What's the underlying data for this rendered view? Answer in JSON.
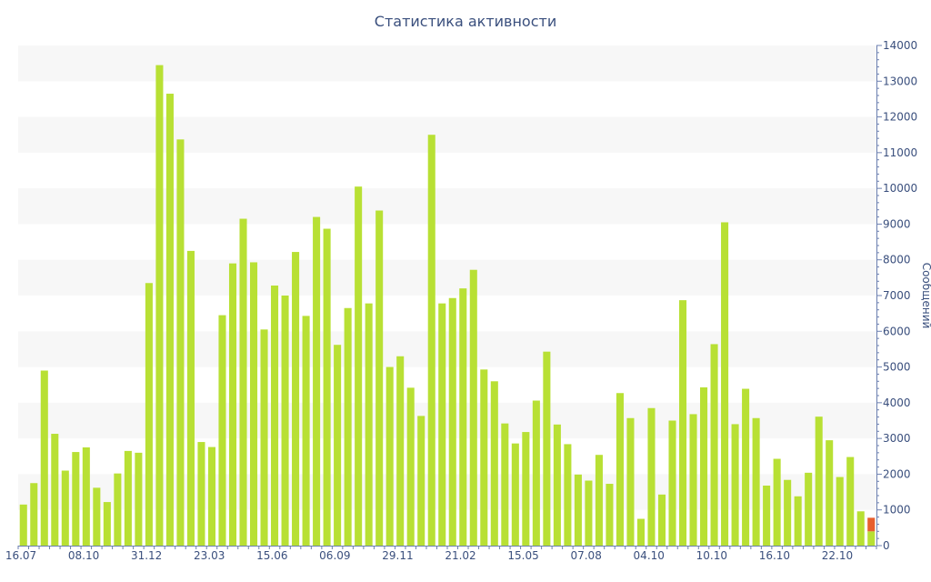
{
  "chart_data": {
    "type": "bar",
    "title": "Статистика активности",
    "xlabel": "",
    "ylabel": "Сообщений",
    "ylim": [
      0,
      14000
    ],
    "yticks": [
      0,
      1000,
      2000,
      3000,
      4000,
      5000,
      6000,
      7000,
      8000,
      9000,
      10000,
      11000,
      12000,
      13000,
      14000
    ],
    "y_axis_position": "right",
    "grid": "alternating horizontal bands",
    "x_tick_labels": [
      {
        "index": 0,
        "label": "16.07"
      },
      {
        "index": 6,
        "label": "08.10"
      },
      {
        "index": 12,
        "label": "31.12"
      },
      {
        "index": 18,
        "label": "23.03"
      },
      {
        "index": 24,
        "label": "15.06"
      },
      {
        "index": 30,
        "label": "06.09"
      },
      {
        "index": 36,
        "label": "29.11"
      },
      {
        "index": 42,
        "label": "21.02"
      },
      {
        "index": 48,
        "label": "15.05"
      },
      {
        "index": 54,
        "label": "07.08"
      },
      {
        "index": 60,
        "label": "04.10"
      },
      {
        "index": 66,
        "label": "10.10"
      },
      {
        "index": 72,
        "label": "16.10"
      },
      {
        "index": 78,
        "label": "22.10"
      }
    ],
    "values": [
      1150,
      1750,
      4900,
      3130,
      2100,
      2620,
      2750,
      1620,
      1220,
      2020,
      2650,
      2600,
      7350,
      13450,
      12650,
      11370,
      8250,
      2900,
      2760,
      6450,
      7900,
      9150,
      7930,
      6050,
      7280,
      7000,
      8220,
      6430,
      9200,
      8870,
      5620,
      6650,
      10050,
      6780,
      9380,
      5000,
      5300,
      4420,
      3630,
      11500,
      6780,
      6930,
      7200,
      7720,
      4930,
      4600,
      3420,
      2860,
      3180,
      4060,
      5430,
      3390,
      2840,
      1990,
      1820,
      2540,
      1730,
      4270,
      3570,
      750,
      3850,
      1430,
      3500,
      6870,
      3680,
      4430,
      5640,
      9050,
      3400,
      4390,
      3570,
      1680,
      2430,
      1840,
      1380,
      2040,
      3610,
      2950,
      1920,
      2480,
      960,
      780
    ],
    "highlight_last": true,
    "colors": {
      "bar": "#b8e034",
      "highlight": "#e85f2e",
      "axis": "#6b7fb0",
      "text": "#3a4f7d",
      "band": "#f7f7f7"
    }
  }
}
